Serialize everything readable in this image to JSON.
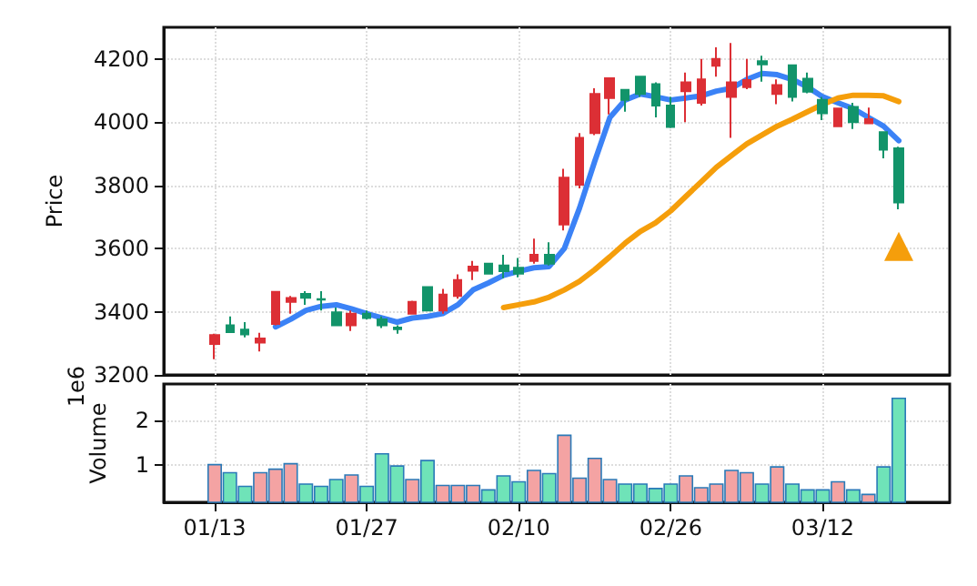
{
  "chart_data": [
    {
      "type": "candlestick",
      "ylabel": "Price",
      "ylim": [
        3200,
        4300
      ],
      "yticks": [
        3200,
        3400,
        3600,
        3800,
        4000,
        4200
      ],
      "grid": true,
      "tick_labels": "y",
      "marker": "none",
      "series": [
        {
          "type": "candlestick",
          "ohlc": [
            [
              3298,
              3330,
              3250,
              3326
            ],
            [
              3357,
              3385,
              3335,
              3335
            ],
            [
              3343,
              3367,
              3319,
              3328
            ],
            [
              3302,
              3333,
              3274,
              3315
            ],
            [
              3361,
              3465,
              3357,
              3463
            ],
            [
              3431,
              3450,
              3394,
              3443
            ],
            [
              3456,
              3465,
              3422,
              3444
            ],
            [
              3440,
              3465,
              3404,
              3438
            ],
            [
              3398,
              3413,
              3357,
              3357
            ],
            [
              3357,
              3404,
              3339,
              3394
            ],
            [
              3394,
              3404,
              3376,
              3380
            ],
            [
              3376,
              3385,
              3348,
              3357
            ],
            [
              3350,
              3357,
              3330,
              3345
            ],
            [
              3394,
              3435,
              3394,
              3431
            ],
            [
              3478,
              3480,
              3402,
              3404
            ],
            [
              3404,
              3472,
              3394,
              3454
            ],
            [
              3450,
              3518,
              3441,
              3500
            ],
            [
              3530,
              3561,
              3500,
              3543
            ],
            [
              3552,
              3552,
              3520,
              3520
            ],
            [
              3546,
              3580,
              3506,
              3528
            ],
            [
              3539,
              3570,
              3509,
              3520
            ],
            [
              3561,
              3631,
              3552,
              3580
            ],
            [
              3580,
              3620,
              3546,
              3552
            ],
            [
              3676,
              3852,
              3657,
              3824
            ],
            [
              3802,
              3965,
              3790,
              3950
            ],
            [
              3965,
              4107,
              3959,
              4089
            ],
            [
              4076,
              4139,
              4024,
              4139
            ],
            [
              4102,
              4102,
              4033,
              4070
            ],
            [
              4144,
              4144,
              4080,
              4089
            ],
            [
              4120,
              4126,
              4015,
              4052
            ],
            [
              4052,
              4080,
              3981,
              3985
            ],
            [
              4098,
              4157,
              4000,
              4126
            ],
            [
              4061,
              4200,
              4052,
              4135
            ],
            [
              4178,
              4237,
              4144,
              4200
            ],
            [
              4080,
              4250,
              3950,
              4126
            ],
            [
              4111,
              4200,
              4104,
              4133
            ],
            [
              4193,
              4210,
              4128,
              4183
            ],
            [
              4089,
              4135,
              4057,
              4117
            ],
            [
              4180,
              4180,
              4065,
              4080
            ],
            [
              4137,
              4157,
              4091,
              4096
            ],
            [
              4070,
              4080,
              4006,
              4028
            ],
            [
              3987,
              4043,
              3987,
              4043
            ],
            [
              4048,
              4061,
              3978,
              4000
            ],
            [
              3996,
              4046,
              3996,
              4009
            ],
            [
              3968,
              3968,
              3885,
              3913
            ],
            [
              3917,
              3922,
              3724,
              3746
            ]
          ],
          "colors": [
            "#dc2f35",
            "#12946a",
            "#12946a",
            "#dc2f35",
            "#dc2f35",
            "#dc2f35",
            "#12946a",
            "#12946a",
            "#12946a",
            "#dc2f35",
            "#12946a",
            "#12946a",
            "#12946a",
            "#dc2f35",
            "#12946a",
            "#dc2f35",
            "#dc2f35",
            "#dc2f35",
            "#12946a",
            "#12946a",
            "#12946a",
            "#dc2f35",
            "#12946a",
            "#dc2f35",
            "#dc2f35",
            "#dc2f35",
            "#dc2f35",
            "#12946a",
            "#12946a",
            "#12946a",
            "#12946a",
            "#dc2f35",
            "#dc2f35",
            "#dc2f35",
            "#dc2f35",
            "#dc2f35",
            "#12946a",
            "#dc2f35",
            "#12946a",
            "#12946a",
            "#12946a",
            "#dc2f35",
            "#12946a",
            "#dc2f35",
            "#12946a",
            "#12946a"
          ]
        },
        {
          "type": "line",
          "color": "#3b82f6",
          "values": [
            null,
            null,
            null,
            null,
            3352,
            3376,
            3404,
            3417,
            3422,
            3409,
            3394,
            3380,
            3367,
            3380,
            3385,
            3394,
            3422,
            3469,
            3491,
            3515,
            3528,
            3539,
            3543,
            3600,
            3728,
            3876,
            4015,
            4070,
            4089,
            4080,
            4070,
            4076,
            4083,
            4098,
            4107,
            4135,
            4154,
            4150,
            4135,
            4111,
            4080,
            4061,
            4043,
            4015,
            3987,
            3941
          ]
        },
        {
          "type": "line",
          "color": "#f59e0b",
          "values": [
            null,
            null,
            null,
            null,
            null,
            null,
            null,
            null,
            null,
            null,
            null,
            null,
            null,
            null,
            null,
            null,
            null,
            null,
            null,
            3413,
            3422,
            3431,
            3446,
            3469,
            3496,
            3533,
            3574,
            3617,
            3654,
            3681,
            3719,
            3765,
            3811,
            3857,
            3894,
            3931,
            3959,
            3987,
            4009,
            4033,
            4056,
            4076,
            4085,
            4085,
            4083,
            4065
          ]
        },
        {
          "type": "scatter",
          "color": "#f59e0b",
          "marker": "triangle",
          "values": [
            null,
            null,
            null,
            null,
            null,
            null,
            null,
            null,
            null,
            null,
            null,
            null,
            null,
            null,
            null,
            null,
            null,
            null,
            null,
            null,
            null,
            null,
            null,
            null,
            null,
            null,
            null,
            null,
            null,
            null,
            null,
            null,
            null,
            null,
            null,
            null,
            null,
            null,
            null,
            null,
            null,
            null,
            null,
            null,
            null,
            3607
          ]
        }
      ]
    },
    {
      "type": "bar",
      "ylabel": "Volume",
      "annotations": [
        "1e6"
      ],
      "categories": [
        "01/13",
        null,
        null,
        null,
        null,
        null,
        null,
        null,
        null,
        null,
        "01/27",
        null,
        null,
        null,
        null,
        null,
        null,
        null,
        null,
        null,
        "02/10",
        null,
        null,
        null,
        null,
        null,
        null,
        null,
        null,
        null,
        "02/26",
        null,
        null,
        null,
        null,
        null,
        null,
        null,
        null,
        null,
        "03/12",
        null,
        null,
        null,
        null,
        null
      ],
      "values": [
        1.03,
        0.85,
        0.55,
        0.85,
        0.93,
        1.05,
        0.6,
        0.55,
        0.7,
        0.8,
        0.55,
        1.27,
        1.0,
        0.7,
        1.12,
        0.57,
        0.57,
        0.57,
        0.47,
        0.78,
        0.65,
        0.9,
        0.83,
        1.68,
        0.73,
        1.17,
        0.7,
        0.6,
        0.6,
        0.5,
        0.6,
        0.78,
        0.52,
        0.6,
        0.9,
        0.85,
        0.6,
        0.98,
        0.6,
        0.47,
        0.47,
        0.65,
        0.47,
        0.37,
        0.98,
        2.5
      ],
      "colors": [
        "#f4a3a3",
        "#6fe3b8",
        "#6fe3b8",
        "#f4a3a3",
        "#f4a3a3",
        "#f4a3a3",
        "#6fe3b8",
        "#6fe3b8",
        "#6fe3b8",
        "#f4a3a3",
        "#6fe3b8",
        "#6fe3b8",
        "#6fe3b8",
        "#f4a3a3",
        "#6fe3b8",
        "#f4a3a3",
        "#f4a3a3",
        "#f4a3a3",
        "#6fe3b8",
        "#6fe3b8",
        "#6fe3b8",
        "#f4a3a3",
        "#6fe3b8",
        "#f4a3a3",
        "#f4a3a3",
        "#f4a3a3",
        "#f4a3a3",
        "#6fe3b8",
        "#6fe3b8",
        "#6fe3b8",
        "#6fe3b8",
        "#f4a3a3",
        "#f4a3a3",
        "#f4a3a3",
        "#f4a3a3",
        "#f4a3a3",
        "#6fe3b8",
        "#f4a3a3",
        "#6fe3b8",
        "#6fe3b8",
        "#6fe3b8",
        "#f4a3a3",
        "#6fe3b8",
        "#f4a3a3",
        "#6fe3b8",
        "#6fe3b8"
      ],
      "ylim": [
        0.18,
        2.8
      ],
      "yticks": [
        1,
        2
      ],
      "grid": true
    }
  ]
}
